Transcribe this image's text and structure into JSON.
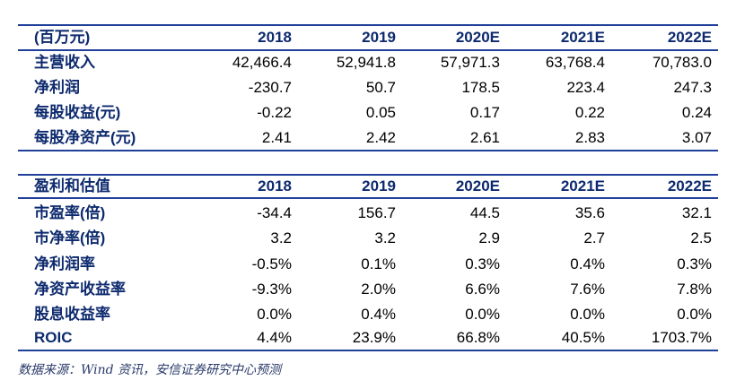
{
  "table1": {
    "header": [
      "(百万元)",
      "2018",
      "2019",
      "2020E",
      "2021E",
      "2022E"
    ],
    "rows": [
      [
        "主营收入",
        "42,466.4",
        "52,941.8",
        "57,971.3",
        "63,768.4",
        "70,783.0"
      ],
      [
        "净利润",
        "-230.7",
        "50.7",
        "178.5",
        "223.4",
        "247.3"
      ],
      [
        "每股收益(元)",
        "-0.22",
        "0.05",
        "0.17",
        "0.22",
        "0.24"
      ],
      [
        "每股净资产(元)",
        "2.41",
        "2.42",
        "2.61",
        "2.83",
        "3.07"
      ]
    ]
  },
  "table2": {
    "header": [
      "盈利和估值",
      "2018",
      "2019",
      "2020E",
      "2021E",
      "2022E"
    ],
    "rows": [
      [
        "市盈率(倍)",
        "-34.4",
        "156.7",
        "44.5",
        "35.6",
        "32.1"
      ],
      [
        "市净率(倍)",
        "3.2",
        "3.2",
        "2.9",
        "2.7",
        "2.5"
      ],
      [
        "净利润率",
        "-0.5%",
        "0.1%",
        "0.3%",
        "0.4%",
        "0.3%"
      ],
      [
        "净资产收益率",
        "-9.3%",
        "2.0%",
        "6.6%",
        "7.6%",
        "7.8%"
      ],
      [
        "股息收益率",
        "0.0%",
        "0.4%",
        "0.0%",
        "0.0%",
        "0.0%"
      ],
      [
        "ROIC",
        "4.4%",
        "23.9%",
        "66.8%",
        "40.5%",
        "1703.7%"
      ]
    ]
  },
  "source": "数据来源：Wind 资讯，安信证券研究中心预测"
}
